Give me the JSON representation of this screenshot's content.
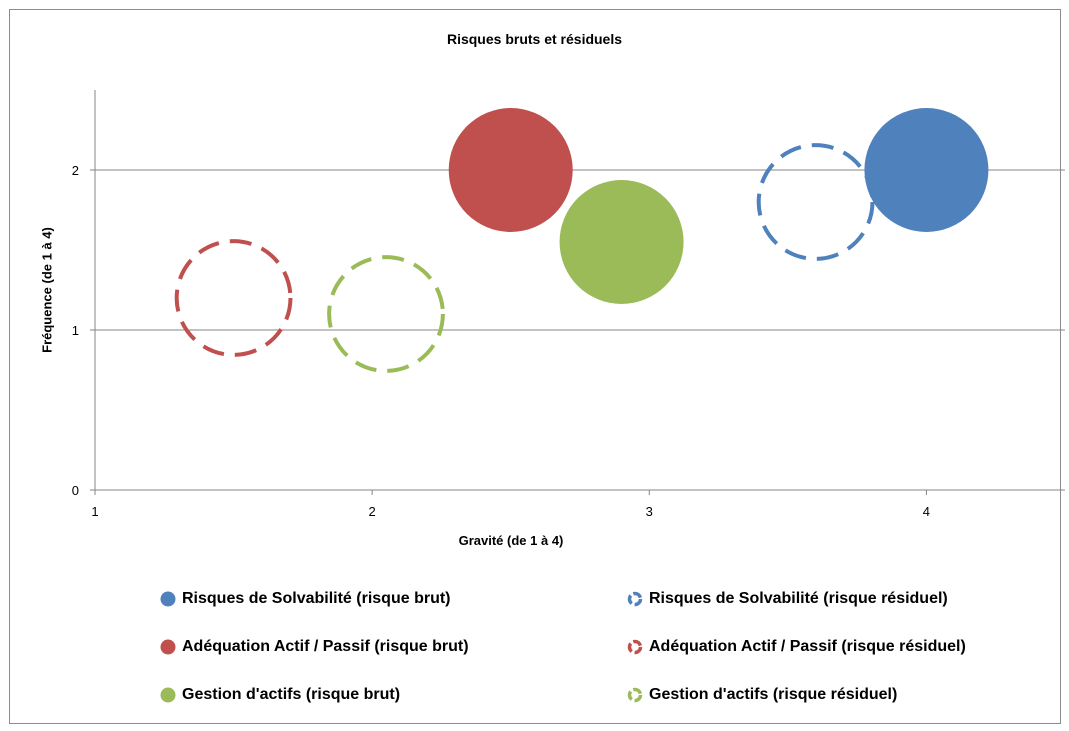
{
  "chart_data": {
    "type": "bubble",
    "title": "Risques bruts et résiduels",
    "xlabel": "Gravité (de 1 à 4)",
    "ylabel": "Fréquence (de 1 à 4)",
    "xlim": [
      1,
      4.5
    ],
    "ylim": [
      0,
      2.5
    ],
    "x_ticks": [
      1,
      2,
      3,
      4
    ],
    "y_ticks": [
      0,
      1,
      2
    ],
    "grid": "horizontal",
    "legend_position": "bottom",
    "series": [
      {
        "name": "Risques de Solvabilité (risque brut)",
        "color": "#4F81BD",
        "style": "solid",
        "x": 4.0,
        "y": 2.0,
        "size": 1.0
      },
      {
        "name": "Risques de Solvabilité (risque résiduel)",
        "color": "#4F81BD",
        "style": "dashed",
        "x": 3.6,
        "y": 1.8,
        "size": 0.95
      },
      {
        "name": "Adéquation Actif / Passif (risque brut)",
        "color": "#C0504D",
        "style": "solid",
        "x": 2.5,
        "y": 2.0,
        "size": 1.0
      },
      {
        "name": "Adéquation Actif / Passif (risque résiduel)",
        "color": "#C0504D",
        "style": "dashed",
        "x": 1.5,
        "y": 1.2,
        "size": 0.95
      },
      {
        "name": "Gestion d'actifs (risque brut)",
        "color": "#9BBB59",
        "style": "solid",
        "x": 2.9,
        "y": 1.55,
        "size": 1.0
      },
      {
        "name": "Gestion d'actifs (risque résiduel)",
        "color": "#9BBB59",
        "style": "dashed",
        "x": 2.05,
        "y": 1.1,
        "size": 0.95
      }
    ]
  }
}
